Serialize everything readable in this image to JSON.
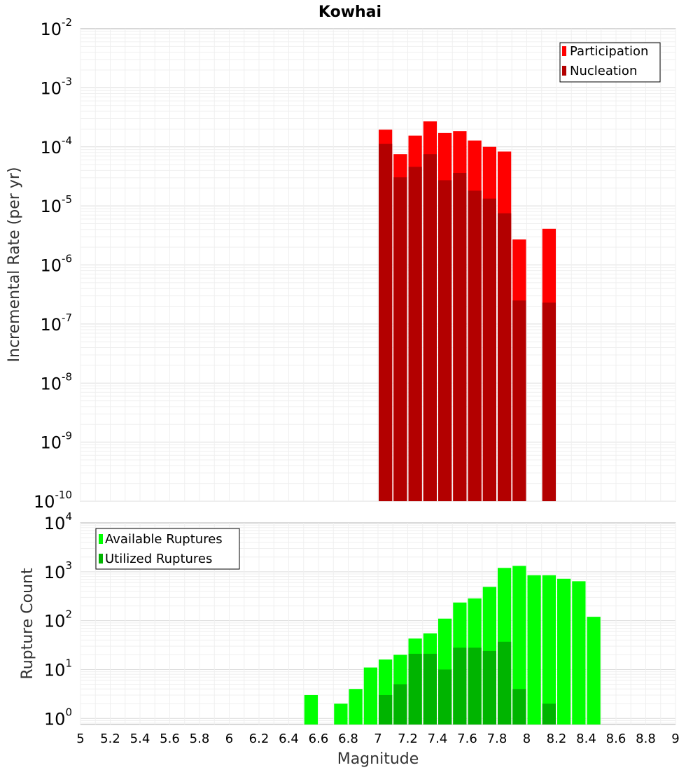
{
  "chart_data": [
    {
      "type": "bar",
      "title": "Kowhai",
      "xlabel": "",
      "ylabel": "Incremental Rate (per yr)",
      "yscale": "log",
      "xlim": [
        5,
        9
      ],
      "ylim": [
        1e-10,
        0.01
      ],
      "grid": true,
      "legend_position": "top-right",
      "legend": [
        "Participation",
        "Nucleation"
      ],
      "y_ticks": [
        {
          "base": "10",
          "exp": "-10",
          "value": 1e-10
        },
        {
          "base": "10",
          "exp": "-9",
          "value": 1e-09
        },
        {
          "base": "10",
          "exp": "-8",
          "value": 1e-08
        },
        {
          "base": "10",
          "exp": "-7",
          "value": 1e-07
        },
        {
          "base": "10",
          "exp": "-6",
          "value": 1e-06
        },
        {
          "base": "10",
          "exp": "-5",
          "value": 1e-05
        },
        {
          "base": "10",
          "exp": "-4",
          "value": 0.0001
        },
        {
          "base": "10",
          "exp": "-3",
          "value": 0.001
        },
        {
          "base": "10",
          "exp": "-2",
          "value": 0.01
        }
      ],
      "series": [
        {
          "name": "Participation",
          "color": "#ff0000",
          "x": [
            7.05,
            7.15,
            7.25,
            7.35,
            7.45,
            7.55,
            7.65,
            7.75,
            7.85,
            7.95,
            8.15
          ],
          "values": [
            0.000195,
            7.52e-05,
            0.000155,
            0.00027,
            0.000172,
            0.000185,
            0.000128,
            0.0001,
            8.32e-05,
            2.7e-06,
            4.1e-06
          ]
        },
        {
          "name": "Nucleation",
          "color": "#b30000",
          "x": [
            7.05,
            7.15,
            7.25,
            7.35,
            7.45,
            7.55,
            7.65,
            7.75,
            7.85,
            7.95,
            8.15
          ],
          "values": [
            0.000112,
            3.05e-05,
            4.58e-05,
            7.52e-05,
            2.72e-05,
            3.62e-05,
            1.81e-05,
            1.33e-05,
            7.5e-06,
            2.5e-07,
            2.3e-07
          ]
        }
      ]
    },
    {
      "type": "bar",
      "title": "",
      "xlabel": "Magnitude",
      "ylabel": "Rupture Count",
      "yscale": "log",
      "xlim": [
        5,
        9
      ],
      "ylim": [
        0.75,
        10000
      ],
      "grid": true,
      "legend_position": "top-left",
      "legend": [
        "Available Ruptures",
        "Utilized Ruptures"
      ],
      "x_ticks": [
        "5",
        "5.2",
        "5.4",
        "5.6",
        "5.8",
        "6",
        "6.2",
        "6.4",
        "6.6",
        "6.8",
        "7",
        "7.2",
        "7.4",
        "7.6",
        "7.8",
        "8",
        "8.2",
        "8.4",
        "8.6",
        "8.8",
        "9"
      ],
      "y_ticks": [
        {
          "base": "10",
          "exp": "0",
          "value": 1
        },
        {
          "base": "10",
          "exp": "1",
          "value": 10
        },
        {
          "base": "10",
          "exp": "2",
          "value": 100
        },
        {
          "base": "10",
          "exp": "3",
          "value": 1000
        },
        {
          "base": "10",
          "exp": "4",
          "value": 10000
        }
      ],
      "series": [
        {
          "name": "Available Ruptures",
          "color": "#00ff00",
          "x": [
            6.55,
            6.75,
            6.85,
            6.95,
            7.05,
            7.15,
            7.25,
            7.35,
            7.45,
            7.55,
            7.65,
            7.75,
            7.85,
            7.95,
            8.05,
            8.15,
            8.25,
            8.35,
            8.45
          ],
          "values": [
            3,
            2,
            4,
            11,
            16,
            20,
            43,
            55,
            110,
            235,
            285,
            490,
            1200,
            1320,
            850,
            850,
            720,
            640,
            120
          ]
        },
        {
          "name": "Utilized Ruptures",
          "color": "#00b400",
          "x": [
            7.05,
            7.15,
            7.25,
            7.35,
            7.45,
            7.55,
            7.65,
            7.75,
            7.85,
            7.95,
            8.15
          ],
          "values": [
            3,
            5,
            21,
            21,
            10,
            28,
            28,
            24,
            37,
            4,
            2
          ]
        }
      ]
    }
  ]
}
